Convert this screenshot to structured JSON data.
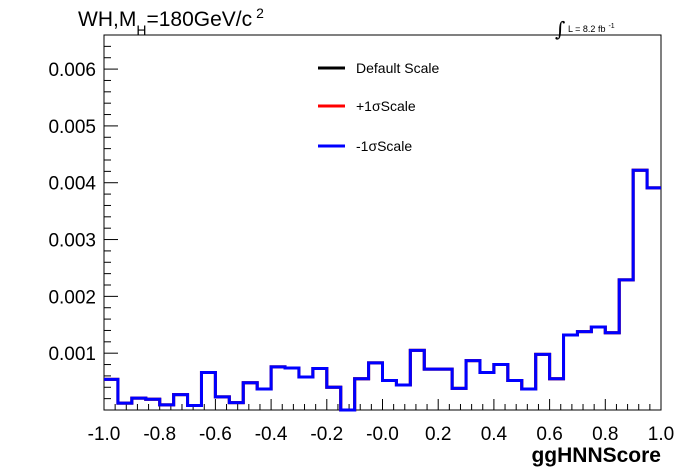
{
  "chart_data": {
    "type": "line",
    "title": {
      "main": "WH,M",
      "subscript": "H",
      "rest": "=180GeV/c",
      "superscript": "2"
    },
    "annotation": {
      "integral": "∫",
      "lumi": "L = 8.2 fb",
      "lumi_exp": "-1"
    },
    "xlabel": "ggHNNScore",
    "ylabel": "",
    "xlim": [
      -1.0,
      1.0
    ],
    "ylim": [
      0.0,
      0.0066
    ],
    "x_ticks": [
      "-1.0",
      "-0.8",
      "-0.6",
      "-0.4",
      "-0.2",
      "-0.0",
      "0.2",
      "0.4",
      "0.6",
      "0.8",
      "1.0"
    ],
    "y_ticks": [
      "0.001",
      "0.002",
      "0.003",
      "0.004",
      "0.005",
      "0.006"
    ],
    "legend_position": "top-center",
    "bin_edges": [
      -1.0,
      -0.95,
      -0.9,
      -0.85,
      -0.8,
      -0.75,
      -0.7,
      -0.65,
      -0.6,
      -0.55,
      -0.5,
      -0.45,
      -0.4,
      -0.35,
      -0.3,
      -0.25,
      -0.2,
      -0.15,
      -0.1,
      -0.05,
      0.0,
      0.05,
      0.1,
      0.15,
      0.2,
      0.25,
      0.3,
      0.35,
      0.4,
      0.45,
      0.5,
      0.55,
      0.6,
      0.65,
      0.7,
      0.75,
      0.8,
      0.85,
      0.9,
      0.95,
      1.0
    ],
    "series": [
      {
        "name": "Default Scale",
        "color": "#000000",
        "values": [
          0.00054,
          0.00012,
          0.00021,
          0.00019,
          9e-05,
          0.00027,
          8e-05,
          0.00066,
          0.00023,
          0.00013,
          0.00048,
          0.00037,
          0.00076,
          0.00074,
          0.00058,
          0.00073,
          0.0004,
          0.0,
          0.00055,
          0.00083,
          0.00052,
          0.00044,
          0.00105,
          0.00072,
          0.00072,
          0.00038,
          0.00087,
          0.00066,
          0.0008,
          0.00052,
          0.00037,
          0.00098,
          0.00055,
          0.00132,
          0.00138,
          0.00146,
          0.00136,
          0.00229,
          0.00422,
          0.00391
        ]
      },
      {
        "name": "+1σScale",
        "color": "#ff0000",
        "values": [
          0.00054,
          0.00012,
          0.00021,
          0.00019,
          9e-05,
          0.00027,
          8e-05,
          0.00066,
          0.00023,
          0.00013,
          0.00048,
          0.00037,
          0.00076,
          0.00074,
          0.00058,
          0.00073,
          0.0004,
          0.0,
          0.00055,
          0.00083,
          0.00052,
          0.00044,
          0.00105,
          0.00072,
          0.00072,
          0.00038,
          0.00087,
          0.00066,
          0.0008,
          0.00052,
          0.00037,
          0.00098,
          0.00055,
          0.00132,
          0.00138,
          0.00146,
          0.00136,
          0.00229,
          0.00422,
          0.00391
        ]
      },
      {
        "name": "-1σScale",
        "color": "#0000ff",
        "values": [
          0.00054,
          0.00012,
          0.00021,
          0.00019,
          9e-05,
          0.00027,
          8e-05,
          0.00066,
          0.00023,
          0.00013,
          0.00048,
          0.00037,
          0.00076,
          0.00074,
          0.00058,
          0.00073,
          0.0004,
          0.0,
          0.00055,
          0.00083,
          0.00052,
          0.00044,
          0.00105,
          0.00072,
          0.00072,
          0.00038,
          0.00087,
          0.00066,
          0.0008,
          0.00052,
          0.00037,
          0.00098,
          0.00055,
          0.00132,
          0.00138,
          0.00146,
          0.00136,
          0.00229,
          0.00422,
          0.00391
        ]
      }
    ]
  }
}
